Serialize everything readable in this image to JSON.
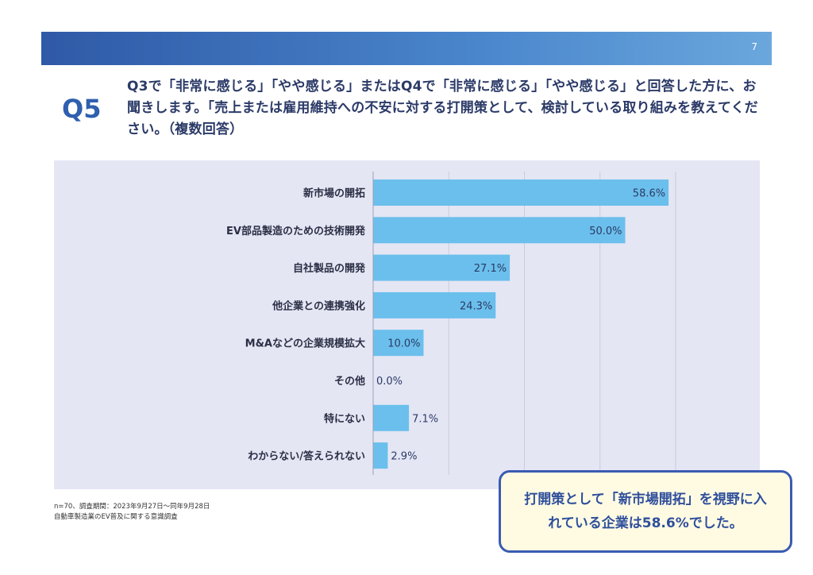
{
  "page": {
    "number": "7"
  },
  "question": {
    "label": "Q5",
    "text": "Q3で「非常に感じる」「やや感じる」またはQ4で「非常に感じる」「やや感じる」と回答した方に、お聞きします。「売上または雇用維持への不安に対する打開策として、検討している取り組みを教えてください。（複数回答）"
  },
  "chart_data": {
    "type": "bar",
    "orientation": "horizontal",
    "categories": [
      "新市場の開拓",
      "EV部品製造のための技術開発",
      "自社製品の開発",
      "他企業との連携強化",
      "M&Aなどの企業規模拡大",
      "その他",
      "特にない",
      "わからない/答えられない"
    ],
    "values": [
      58.6,
      50.0,
      27.1,
      24.3,
      10.0,
      0.0,
      7.1,
      2.9
    ],
    "value_labels": [
      "58.6%",
      "50.0%",
      "27.1%",
      "24.3%",
      "10.0%",
      "0.0%",
      "7.1%",
      "2.9%"
    ],
    "xlim": [
      0,
      60
    ],
    "grid": true,
    "bar_color": "#6bbfec"
  },
  "notes": {
    "line1": "n=70、調査期間：2023年9月27日～同年9月28日",
    "line2": "自動車製造業のEV普及に関する意識調査"
  },
  "callout": {
    "text": "打開策として「新市場開拓」を視野に入れている企業は58.6%でした。"
  }
}
